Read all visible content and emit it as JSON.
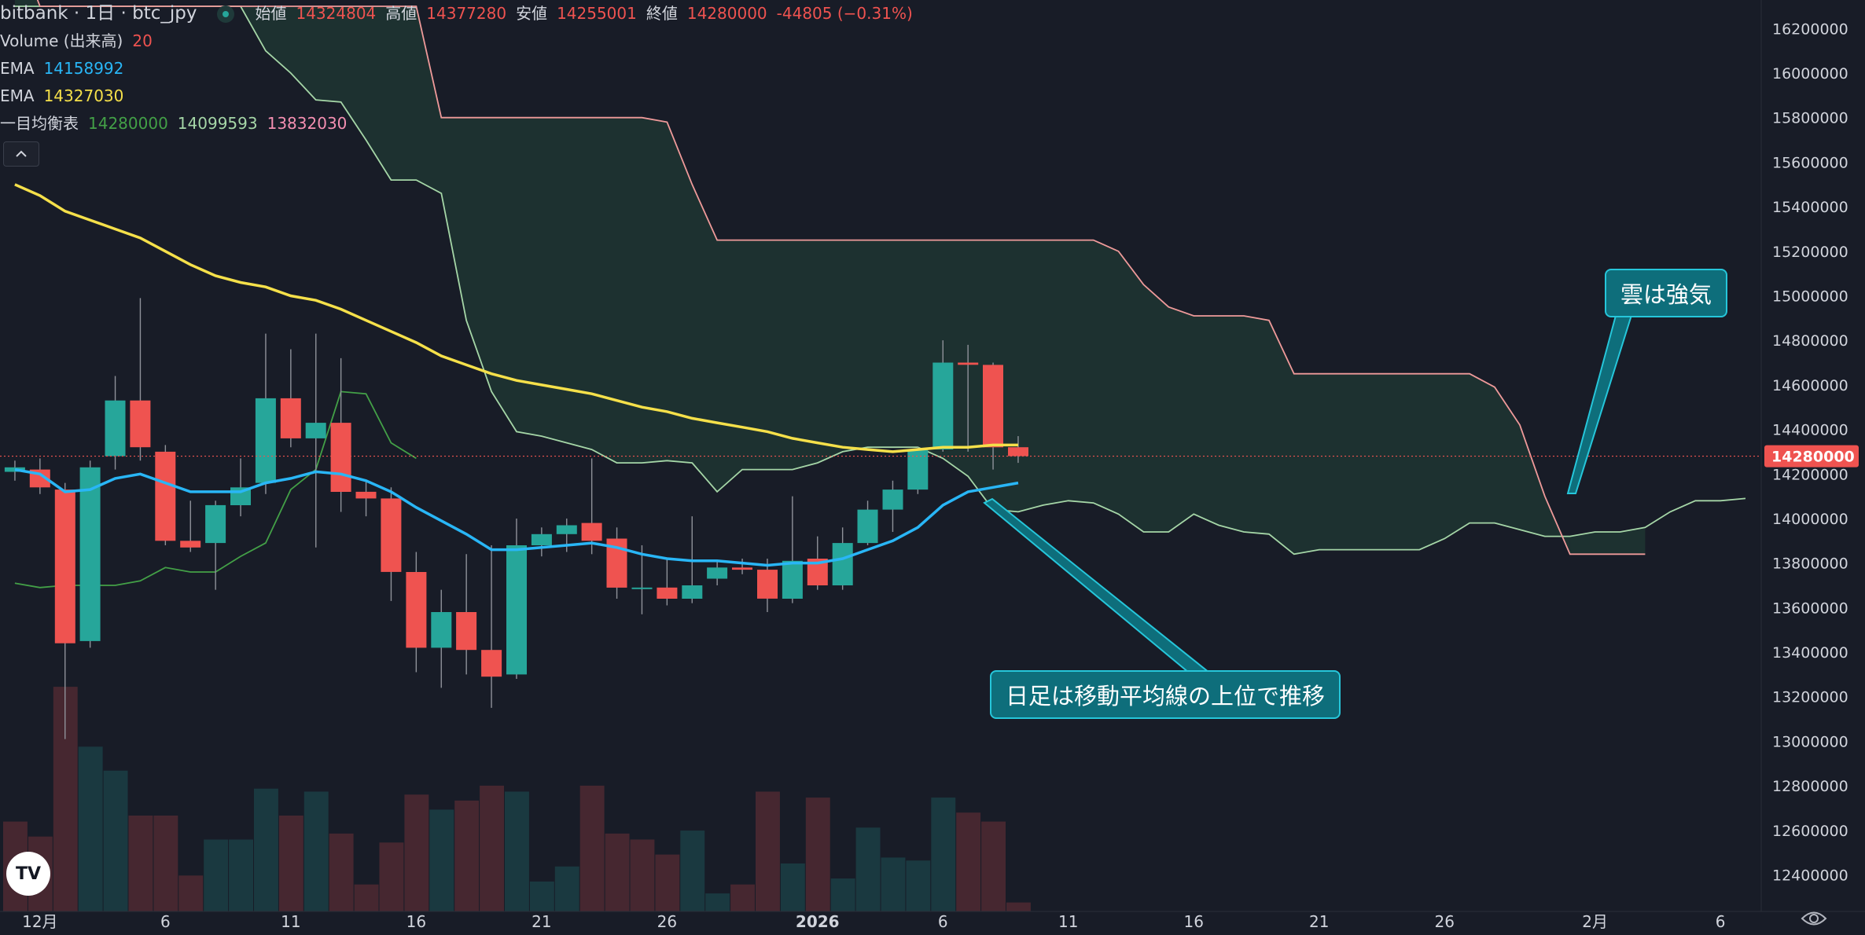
{
  "header": {
    "title": "bitbank · 1日 · btc_jpy",
    "open_label": "始値",
    "open": "14324804",
    "high_label": "高値",
    "high": "14377280",
    "low_label": "安値",
    "low": "14255001",
    "close_label": "終値",
    "close": "14280000",
    "change": "-44805 (−0.31%)"
  },
  "indicators": {
    "volume_label": "Volume (出来高)",
    "volume_value": "20",
    "ema1_label": "EMA",
    "ema1_value": "14158992",
    "ema2_label": "EMA",
    "ema2_value": "14327030",
    "ichimoku_label": "一目均衡表",
    "ichimoku_v1": "14280000",
    "ichimoku_v2": "14099593",
    "ichimoku_v3": "13832030"
  },
  "annotations": {
    "cloud_note": "雲は強気",
    "ma_note": "日足は移動平均線の上位で推移"
  },
  "icons": [
    "chevron-up-icon",
    "tradingview-logo",
    "settings-icon",
    "live-dot-icon"
  ],
  "colors": {
    "background": "#181c27",
    "up": "#26a69a",
    "down": "#ef5350",
    "ema_short": "#29b6f6",
    "ema_long": "#f5e04a",
    "cloud_bear": "#3a2530",
    "cloud_bull": "#1e3330",
    "span_a": "#a5d6a7",
    "span_b": "#ef9a9a",
    "tenkan": "#43a047",
    "callout": "#0e6e7b"
  },
  "chart_data": {
    "type": "candlestick",
    "y_axis": {
      "min": 12250000,
      "max": 16300000,
      "ticks": [
        12400000,
        12600000,
        12800000,
        13000000,
        13200000,
        13400000,
        13600000,
        13800000,
        14000000,
        14200000,
        14400000,
        14600000,
        14800000,
        15000000,
        15200000,
        15400000,
        15600000,
        15800000,
        16000000,
        16200000
      ],
      "current_price_label": "14280000",
      "current_price": 14280000
    },
    "x_axis": {
      "labels": [
        {
          "i": 1,
          "text": "12月"
        },
        {
          "i": 6,
          "text": "6"
        },
        {
          "i": 11,
          "text": "11"
        },
        {
          "i": 16,
          "text": "16"
        },
        {
          "i": 21,
          "text": "21"
        },
        {
          "i": 26,
          "text": "26"
        },
        {
          "i": 32,
          "text": "2026"
        },
        {
          "i": 37,
          "text": "6"
        },
        {
          "i": 42,
          "text": "11"
        },
        {
          "i": 47,
          "text": "16"
        },
        {
          "i": 52,
          "text": "21"
        },
        {
          "i": 57,
          "text": "26"
        },
        {
          "i": 63,
          "text": "2月"
        },
        {
          "i": 68,
          "text": "6"
        }
      ],
      "bars_total": 70
    },
    "candles": [
      {
        "o": 14210000,
        "h": 14260000,
        "l": 14170000,
        "c": 14230000
      },
      {
        "o": 14220000,
        "h": 14270000,
        "l": 14110000,
        "c": 14140000
      },
      {
        "o": 14130000,
        "h": 14160000,
        "l": 13010000,
        "c": 13440000
      },
      {
        "o": 13450000,
        "h": 14260000,
        "l": 13420000,
        "c": 14230000
      },
      {
        "o": 14280000,
        "h": 14640000,
        "l": 14220000,
        "c": 14530000
      },
      {
        "o": 14530000,
        "h": 14990000,
        "l": 14260000,
        "c": 14320000
      },
      {
        "o": 14300000,
        "h": 14330000,
        "l": 13880000,
        "c": 13900000
      },
      {
        "o": 13900000,
        "h": 14080000,
        "l": 13850000,
        "c": 13870000
      },
      {
        "o": 13890000,
        "h": 14080000,
        "l": 13680000,
        "c": 14060000
      },
      {
        "o": 14060000,
        "h": 14270000,
        "l": 14010000,
        "c": 14140000
      },
      {
        "o": 14160000,
        "h": 14830000,
        "l": 14110000,
        "c": 14540000
      },
      {
        "o": 14540000,
        "h": 14760000,
        "l": 14320000,
        "c": 14360000
      },
      {
        "o": 14360000,
        "h": 14830000,
        "l": 13870000,
        "c": 14430000
      },
      {
        "o": 14430000,
        "h": 14720000,
        "l": 14030000,
        "c": 14120000
      },
      {
        "o": 14120000,
        "h": 14170000,
        "l": 14010000,
        "c": 14090000
      },
      {
        "o": 14090000,
        "h": 14140000,
        "l": 13630000,
        "c": 13760000
      },
      {
        "o": 13760000,
        "h": 13850000,
        "l": 13310000,
        "c": 13420000
      },
      {
        "o": 13420000,
        "h": 13680000,
        "l": 13240000,
        "c": 13580000
      },
      {
        "o": 13580000,
        "h": 13840000,
        "l": 13300000,
        "c": 13410000
      },
      {
        "o": 13410000,
        "h": 13880000,
        "l": 13150000,
        "c": 13290000
      },
      {
        "o": 13300000,
        "h": 14000000,
        "l": 13280000,
        "c": 13880000
      },
      {
        "o": 13880000,
        "h": 13960000,
        "l": 13830000,
        "c": 13930000
      },
      {
        "o": 13930000,
        "h": 14000000,
        "l": 13850000,
        "c": 13970000
      },
      {
        "o": 13980000,
        "h": 14270000,
        "l": 13840000,
        "c": 13900000
      },
      {
        "o": 13910000,
        "h": 13960000,
        "l": 13640000,
        "c": 13690000
      },
      {
        "o": 13690000,
        "h": 13880000,
        "l": 13570000,
        "c": 13690000
      },
      {
        "o": 13690000,
        "h": 13820000,
        "l": 13610000,
        "c": 13640000
      },
      {
        "o": 13640000,
        "h": 14010000,
        "l": 13620000,
        "c": 13700000
      },
      {
        "o": 13730000,
        "h": 13810000,
        "l": 13700000,
        "c": 13780000
      },
      {
        "o": 13780000,
        "h": 13820000,
        "l": 13750000,
        "c": 13770000
      },
      {
        "o": 13770000,
        "h": 13820000,
        "l": 13580000,
        "c": 13640000
      },
      {
        "o": 13640000,
        "h": 14100000,
        "l": 13620000,
        "c": 13810000
      },
      {
        "o": 13820000,
        "h": 13920000,
        "l": 13680000,
        "c": 13700000
      },
      {
        "o": 13700000,
        "h": 13960000,
        "l": 13680000,
        "c": 13890000
      },
      {
        "o": 13890000,
        "h": 14080000,
        "l": 13880000,
        "c": 14040000
      },
      {
        "o": 14040000,
        "h": 14170000,
        "l": 13940000,
        "c": 14130000
      },
      {
        "o": 14130000,
        "h": 14320000,
        "l": 14110000,
        "c": 14310000
      },
      {
        "o": 14310000,
        "h": 14800000,
        "l": 14300000,
        "c": 14700000
      },
      {
        "o": 14700000,
        "h": 14780000,
        "l": 14300000,
        "c": 14690000
      },
      {
        "o": 14690000,
        "h": 14700000,
        "l": 14220000,
        "c": 14320000
      },
      {
        "o": 14320000,
        "h": 14370000,
        "l": 14250000,
        "c": 14280000
      }
    ],
    "volume": [
      {
        "v": 30,
        "up": false
      },
      {
        "v": 25,
        "up": false
      },
      {
        "v": 75,
        "up": false
      },
      {
        "v": 55,
        "up": true
      },
      {
        "v": 47,
        "up": true
      },
      {
        "v": 32,
        "up": false
      },
      {
        "v": 32,
        "up": false
      },
      {
        "v": 12,
        "up": false
      },
      {
        "v": 24,
        "up": true
      },
      {
        "v": 24,
        "up": true
      },
      {
        "v": 41,
        "up": true
      },
      {
        "v": 32,
        "up": false
      },
      {
        "v": 40,
        "up": true
      },
      {
        "v": 26,
        "up": false
      },
      {
        "v": 9,
        "up": false
      },
      {
        "v": 23,
        "up": false
      },
      {
        "v": 39,
        "up": false
      },
      {
        "v": 34,
        "up": true
      },
      {
        "v": 37,
        "up": false
      },
      {
        "v": 42,
        "up": false
      },
      {
        "v": 40,
        "up": true
      },
      {
        "v": 10,
        "up": true
      },
      {
        "v": 15,
        "up": true
      },
      {
        "v": 42,
        "up": false
      },
      {
        "v": 26,
        "up": false
      },
      {
        "v": 24,
        "up": false
      },
      {
        "v": 19,
        "up": false
      },
      {
        "v": 27,
        "up": true
      },
      {
        "v": 6,
        "up": true
      },
      {
        "v": 9,
        "up": false
      },
      {
        "v": 40,
        "up": false
      },
      {
        "v": 16,
        "up": true
      },
      {
        "v": 38,
        "up": false
      },
      {
        "v": 11,
        "up": true
      },
      {
        "v": 28,
        "up": true
      },
      {
        "v": 18,
        "up": true
      },
      {
        "v": 17,
        "up": true
      },
      {
        "v": 38,
        "up": true
      },
      {
        "v": 33,
        "up": false
      },
      {
        "v": 30,
        "up": false
      },
      {
        "v": 3,
        "up": false
      }
    ],
    "ema_short": [
      14220000,
      14200000,
      14120000,
      14130000,
      14180000,
      14200000,
      14160000,
      14120000,
      14120000,
      14120000,
      14160000,
      14180000,
      14210000,
      14200000,
      14170000,
      14120000,
      14050000,
      13990000,
      13930000,
      13860000,
      13860000,
      13870000,
      13880000,
      13890000,
      13870000,
      13840000,
      13820000,
      13810000,
      13810000,
      13800000,
      13790000,
      13800000,
      13800000,
      13820000,
      13860000,
      13900000,
      13960000,
      14060000,
      14120000,
      14140000,
      14160000
    ],
    "ema_long": [
      15500000,
      15450000,
      15380000,
      15340000,
      15300000,
      15260000,
      15200000,
      15140000,
      15090000,
      15060000,
      15040000,
      15000000,
      14980000,
      14940000,
      14890000,
      14840000,
      14790000,
      14730000,
      14690000,
      14650000,
      14620000,
      14600000,
      14580000,
      14560000,
      14530000,
      14500000,
      14480000,
      14450000,
      14430000,
      14410000,
      14390000,
      14360000,
      14340000,
      14320000,
      14310000,
      14300000,
      14310000,
      14320000,
      14320000,
      14330000,
      14330000
    ],
    "tenkan": [
      13710000,
      13690000,
      13700000,
      13700000,
      13700000,
      13720000,
      13780000,
      13760000,
      13760000,
      13830000,
      13890000,
      14130000,
      14220000,
      14570000,
      14560000,
      14340000,
      14270000
    ],
    "span_b": [
      16600000,
      16300000,
      16300000,
      16300000,
      16300000,
      16300000,
      16300000,
      16300000,
      16300000,
      16300000,
      16300000,
      16300000,
      16300000,
      16300000,
      16300000,
      16300000,
      16300000,
      15800000,
      15800000,
      15800000,
      15800000,
      15800000,
      15800000,
      15800000,
      15800000,
      15800000,
      15780000,
      15500000,
      15250000,
      15250000,
      15250000,
      15250000,
      15250000,
      15250000,
      15250000,
      15250000,
      15250000,
      15250000,
      15250000,
      15250000,
      15250000,
      15250000,
      15250000,
      15250000,
      15200000,
      15050000,
      14950000,
      14910000,
      14910000,
      14910000,
      14890000,
      14650000,
      14650000,
      14650000,
      14650000,
      14650000,
      14650000,
      14650000,
      14650000,
      14590000,
      14420000,
      14100000,
      13840000,
      13840000,
      13840000,
      13840000
    ],
    "span_a": [
      16300000,
      16300000,
      16300000,
      16300000,
      16300000,
      16300000,
      16300000,
      16300000,
      16300000,
      16300000,
      16100000,
      16000000,
      15880000,
      15870000,
      15700000,
      15520000,
      15520000,
      15460000,
      14890000,
      14570000,
      14390000,
      14370000,
      14340000,
      14310000,
      14250000,
      14250000,
      14260000,
      14250000,
      14120000,
      14220000,
      14220000,
      14220000,
      14250000,
      14300000,
      14320000,
      14320000,
      14320000,
      14270000,
      14190000,
      14040000,
      14030000,
      14060000,
      14080000,
      14070000,
      14020000,
      13940000,
      13940000,
      14020000,
      13970000,
      13940000,
      13930000,
      13840000,
      13860000,
      13860000,
      13860000,
      13860000,
      13860000,
      13910000,
      13980000,
      13980000,
      13950000,
      13920000,
      13920000,
      13940000,
      13940000,
      13960000,
      14030000,
      14080000,
      14080000,
      14090000
    ]
  }
}
